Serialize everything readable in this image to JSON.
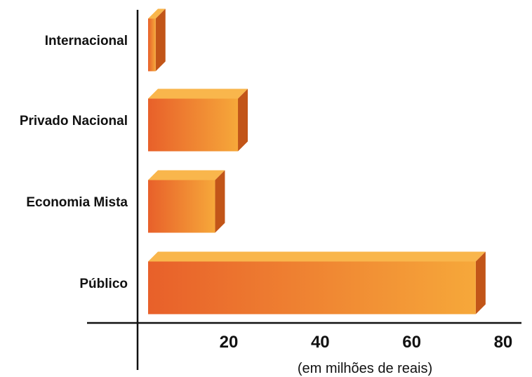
{
  "chart_data": {
    "type": "bar",
    "orientation": "horizontal",
    "categories": [
      "Internacional",
      "Privado Nacional",
      "Economia Mista",
      "Público"
    ],
    "values": [
      4,
      22,
      17,
      74
    ],
    "x_ticks": [
      "20",
      "40",
      "60",
      "80"
    ],
    "xlabel": "(em milhões de reais)",
    "xlim": [
      -11,
      84
    ],
    "grid": false,
    "colors": {
      "bar_left": "#e8602a",
      "bar_right": "#f6a83a",
      "bar_top": "#f9b64c",
      "bar_side": "#c25518",
      "axis": "#111111"
    }
  }
}
